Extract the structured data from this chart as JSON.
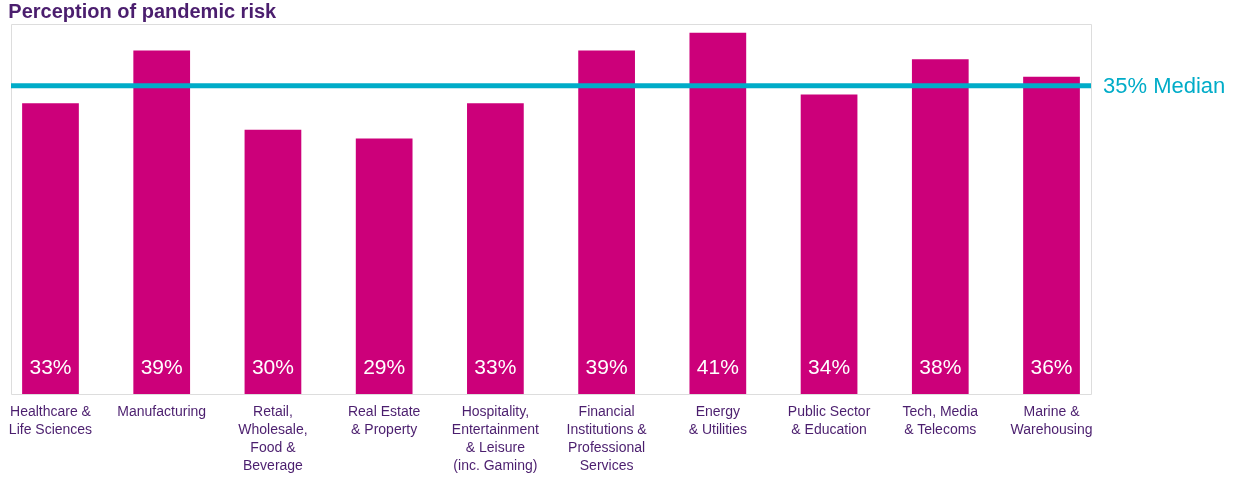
{
  "chart_data": {
    "type": "bar",
    "title": "Perception of pandemic risk",
    "categories": [
      "Healthcare &\nLife Sciences",
      "Manufacturing",
      "Retail,\nWholesale,\nFood &\nBeverage",
      "Real Estate\n& Property",
      "Hospitality,\nEntertainment\n& Leisure\n(inc. Gaming)",
      "Financial\nInstitutions &\nProfessional\nServices",
      "Energy\n& Utilities",
      "Public Sector\n& Education",
      "Tech, Media\n& Telecoms",
      "Marine &\nWarehousing"
    ],
    "values": [
      33,
      39,
      30,
      29,
      33,
      39,
      41,
      34,
      38,
      36
    ],
    "value_labels": [
      "33%",
      "39%",
      "30%",
      "29%",
      "33%",
      "39%",
      "41%",
      "34%",
      "38%",
      "36%"
    ],
    "color": "#cc007a",
    "ylim": [
      0,
      42
    ],
    "ref_lines": [
      {
        "axis": "y",
        "value": 35,
        "label": "35% Median",
        "color": "#00acc8"
      }
    ],
    "tick_labels": "x"
  }
}
